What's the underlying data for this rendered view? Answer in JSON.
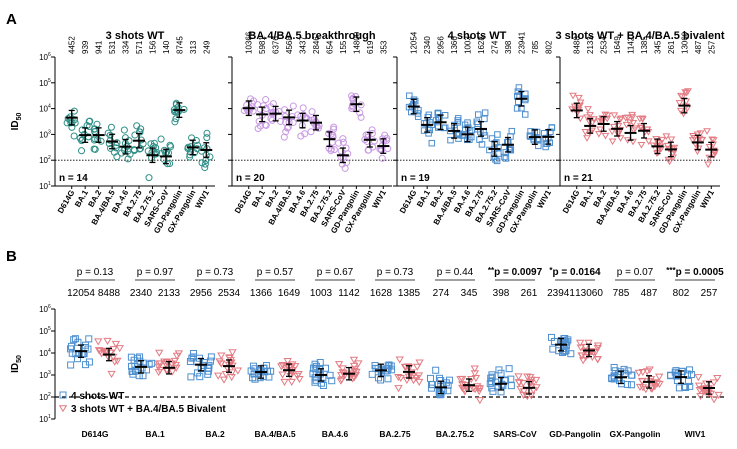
{
  "colors": {
    "wt3": "#2f8f87",
    "ba45": "#c99ae3",
    "wt4": "#4e8fcf",
    "biv": "#e47a82",
    "axis": "#000000"
  },
  "chart_data": [
    {
      "panel": "A",
      "type": "scatter",
      "title": "3 shots WT",
      "n": "n = 14",
      "color_key": "wt3",
      "marker": "circle",
      "ylabel": "ID50",
      "ylim": [
        10,
        1000000
      ],
      "ylog": true,
      "dotted_line": 100,
      "categories": [
        "D614G",
        "BA.1",
        "BA.2",
        "BA.4/BA.5",
        "BA.4.6",
        "BA.2.75",
        "BA.2.75.2",
        "SARS-CoV",
        "GD-Pangolin",
        "GX-Pangolin",
        "WIV1"
      ],
      "values": [
        4452,
        939,
        941,
        531,
        334,
        571,
        156,
        140,
        8745,
        313,
        249
      ],
      "labels": [
        "4452",
        "939",
        "941",
        "531",
        "334",
        "571",
        "156",
        "140",
        "8745",
        "313",
        "249"
      ]
    },
    {
      "panel": "A",
      "type": "scatter",
      "title": "BA.4/BA.5 breakthrough",
      "n": "n = 20",
      "color_key": "ba45",
      "marker": "circle",
      "ylim": [
        10,
        1000000
      ],
      "ylog": true,
      "dotted_line": 100,
      "categories": [
        "D614G",
        "BA.1",
        "BA.2",
        "BA.4/BA.5",
        "BA.4.6",
        "BA.2.75",
        "BA.2.75.2",
        "SARS-CoV",
        "GD-Pangolin",
        "GX-Pangolin",
        "WIV1"
      ],
      "values": [
        10366,
        5981,
        6376,
        4568,
        3437,
        2846,
        654,
        155,
        14800,
        619,
        353
      ],
      "labels": [
        "10366",
        "5981",
        "6376",
        "4568",
        "3437",
        "2846",
        "654",
        "155",
        "14800",
        "619",
        "353"
      ]
    },
    {
      "panel": "A",
      "type": "scatter",
      "title": "4 shots WT",
      "n": "n = 19",
      "color_key": "wt4",
      "marker": "square",
      "ylim": [
        10,
        1000000
      ],
      "ylog": true,
      "dotted_line": 100,
      "categories": [
        "D614G",
        "BA.1",
        "BA.2",
        "BA.4/BA.5",
        "BA.4.6",
        "BA.2.75",
        "BA.2.75.2",
        "SARS-CoV",
        "GD-Pangolin",
        "GX-Pangolin",
        "WIV1"
      ],
      "values": [
        12054,
        2340,
        2956,
        1366,
        1003,
        1628,
        274,
        398,
        23941,
        785,
        802
      ],
      "labels": [
        "12054",
        "2340",
        "2956",
        "1366",
        "1003",
        "1628",
        "274",
        "398",
        "23941",
        "785",
        "802"
      ]
    },
    {
      "panel": "A",
      "type": "scatter",
      "title": "3 shots WT + BA.4/BA.5 bivalent",
      "n": "n = 21",
      "color_key": "biv",
      "marker": "triangle",
      "ylim": [
        10,
        1000000
      ],
      "ylog": true,
      "dotted_line": 100,
      "categories": [
        "D614G",
        "BA.1",
        "BA.2",
        "BA.4/BA.5",
        "BA.4.6",
        "BA.2.75",
        "BA.2.75.2",
        "SARS-CoV",
        "GD-Pangolin",
        "GX-Pangolin",
        "WIV1"
      ],
      "values": [
        8488,
        2133,
        2534,
        1649,
        1142,
        1385,
        345,
        261,
        13060,
        487,
        257
      ],
      "labels": [
        "8488",
        "2133",
        "2534",
        "1649",
        "1142",
        "1385",
        "345",
        "261",
        "13060",
        "487",
        "257"
      ]
    },
    {
      "panel": "B",
      "type": "scatter",
      "ylabel": "ID50",
      "ylim": [
        10,
        1000000
      ],
      "ylog": true,
      "dashed_line": 100,
      "categories": [
        "D614G",
        "BA.1",
        "BA.2",
        "BA.4/BA.5",
        "BA.4.6",
        "BA.2.75",
        "BA.2.75.2",
        "SARS-CoV",
        "GD-Pangolin",
        "GX-Pangolin",
        "WIV1"
      ],
      "pvalues": [
        "p = 0.13",
        "p = 0.97",
        "p = 0.73",
        "p = 0.57",
        "p = 0.67",
        "p = 0.73",
        "p = 0.44",
        "p = 0.0097",
        "p = 0.0164",
        "p = 0.07",
        "p = 0.0005"
      ],
      "stars": [
        "",
        "",
        "",
        "",
        "",
        "",
        "",
        "**",
        "*",
        "",
        "***"
      ],
      "bold": [
        false,
        false,
        false,
        false,
        false,
        false,
        false,
        true,
        true,
        false,
        true
      ],
      "series": [
        {
          "name": "4 shots WT",
          "color_key": "wt4",
          "marker": "square",
          "values": [
            12054,
            2340,
            2956,
            1366,
            1003,
            1628,
            274,
            398,
            23941,
            785,
            802
          ],
          "labels": [
            "12054",
            "2340",
            "2956",
            "1366",
            "1003",
            "1628",
            "274",
            "398",
            "23941",
            "785",
            "802"
          ]
        },
        {
          "name": "3 shots WT + BA.4/BA.5 Bivalent",
          "color_key": "biv",
          "marker": "triangle",
          "values": [
            8488,
            2133,
            2534,
            1649,
            1142,
            1385,
            345,
            261,
            13060,
            487,
            257
          ],
          "labels": [
            "8488",
            "2133",
            "2534",
            "1649",
            "1142",
            "1385",
            "345",
            "261",
            "13060",
            "487",
            "257"
          ]
        }
      ],
      "legend": "bottom-left"
    }
  ],
  "panel_labels": [
    "A",
    "B"
  ],
  "ytick_labels": [
    "10",
    "10",
    "10",
    "10",
    "10",
    "10"
  ],
  "ytick_exponents": [
    "1",
    "2",
    "3",
    "4",
    "5",
    "6"
  ],
  "ylabel_main": "ID",
  "ylabel_sub": "50"
}
